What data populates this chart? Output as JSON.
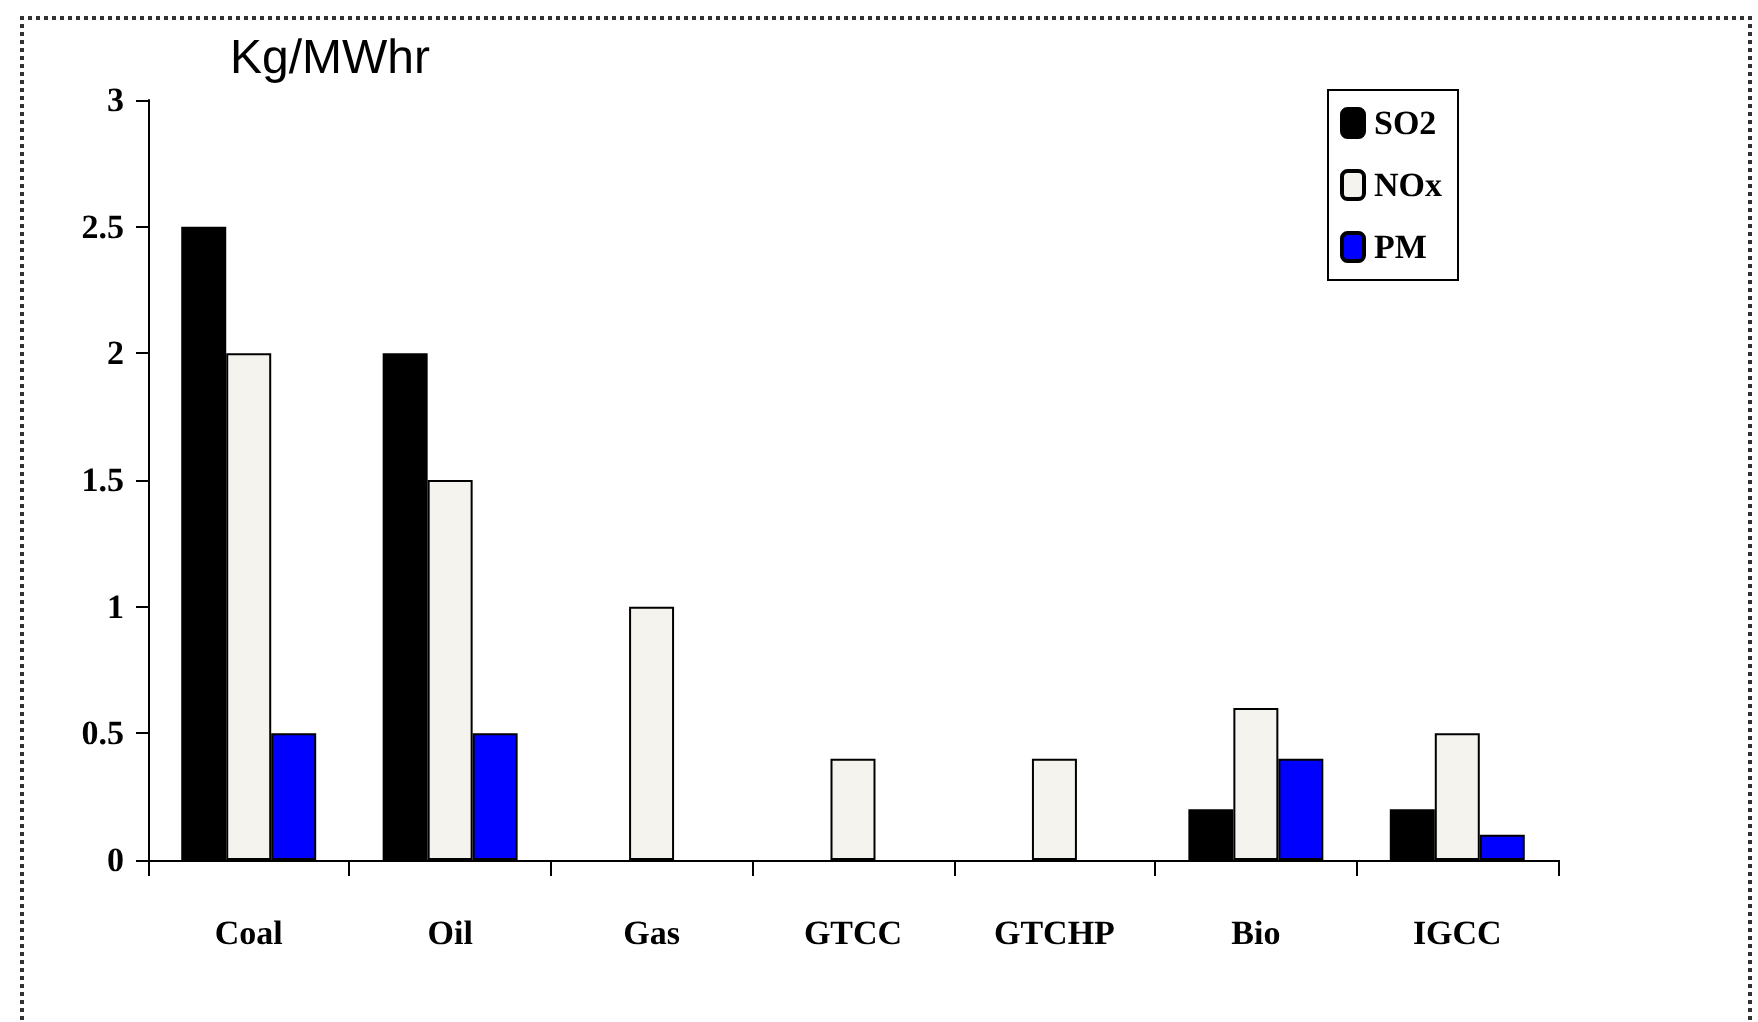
{
  "chart_data": {
    "type": "bar",
    "title": "Kg/MWhr",
    "categories": [
      "Coal",
      "Oil",
      "Gas",
      "GTCC",
      "GTCHP",
      "Bio",
      "IGCC"
    ],
    "series": [
      {
        "name": "SO2",
        "color": "#000000",
        "values": [
          2.5,
          2,
          null,
          null,
          null,
          0.2,
          0.2
        ]
      },
      {
        "name": "NOx",
        "color": "#f4f3ee",
        "values": [
          2,
          1.5,
          1,
          0.4,
          0.4,
          0.6,
          0.5
        ]
      },
      {
        "name": "PM",
        "color": "#0000ff",
        "values": [
          0.5,
          0.5,
          null,
          null,
          null,
          0.4,
          0.1
        ]
      }
    ],
    "ylim": [
      0,
      3
    ],
    "yticks": [
      0,
      0.5,
      1,
      1.5,
      2,
      2.5,
      3
    ],
    "grid": false,
    "legend": "top right"
  }
}
